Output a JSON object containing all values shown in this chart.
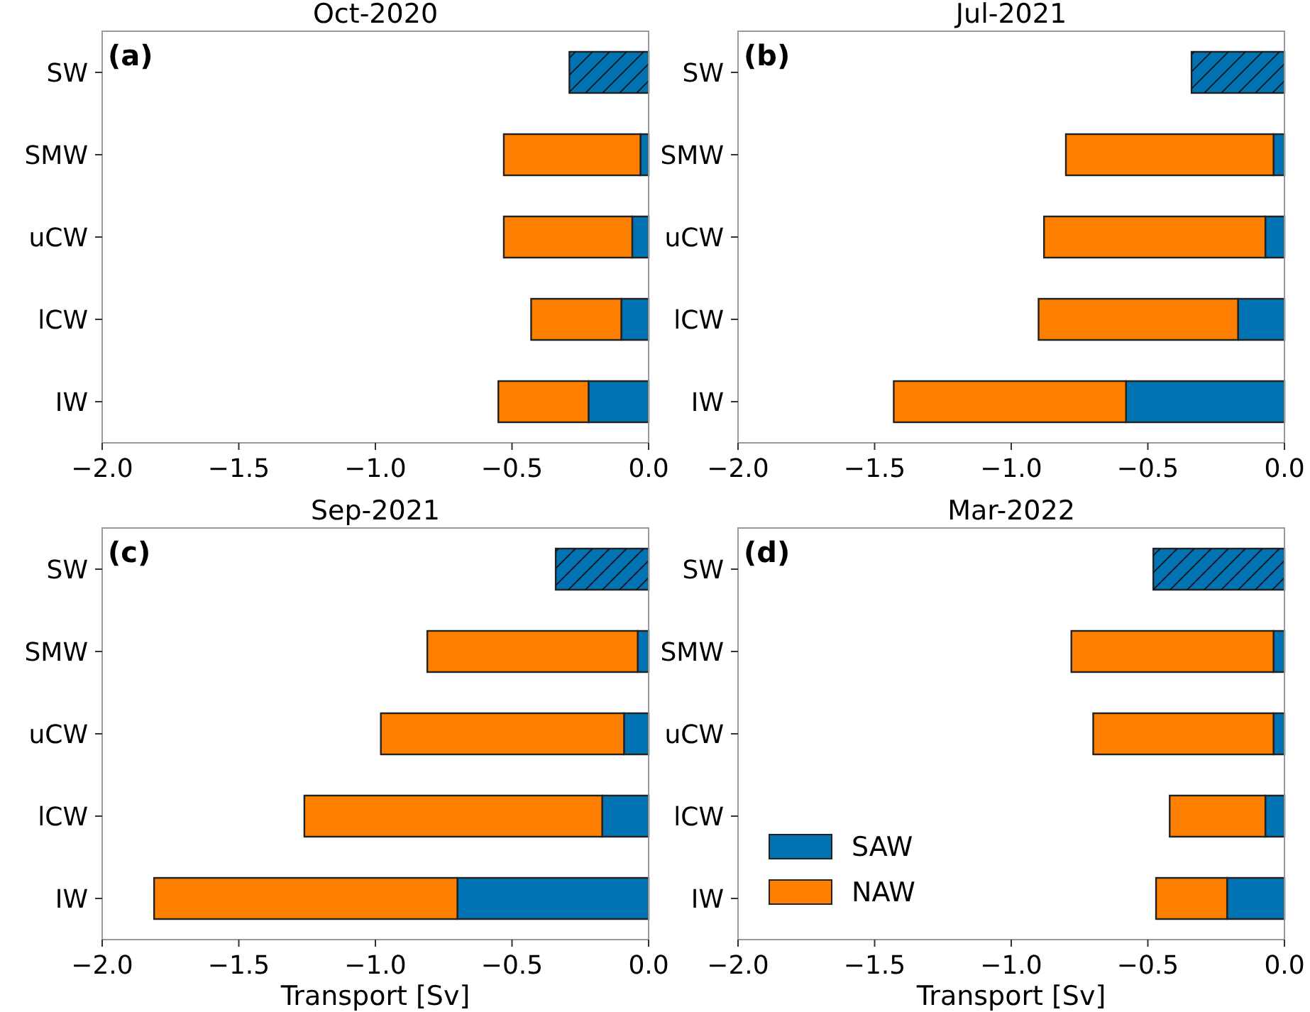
{
  "chart_data": [
    {
      "type": "bar",
      "orientation": "horizontal",
      "stacked": true,
      "title": "Oct-2020",
      "annotations": [
        "(a)"
      ],
      "categories": [
        "SW",
        "SMW",
        "uCW",
        "lCW",
        "IW"
      ],
      "xlim": [
        -2,
        0
      ],
      "xticks": [
        {
          "value": -2,
          "label": "−2.0"
        },
        {
          "value": -1.5,
          "label": "−1.5"
        },
        {
          "value": -1,
          "label": "−1.0"
        },
        {
          "value": -0.5,
          "label": "−0.5"
        },
        {
          "value": 0,
          "label": "0.0"
        }
      ],
      "grid": false,
      "legend": false,
      "series": [
        {
          "color": "#0173b2",
          "values": [
            null,
            -0.03,
            -0.06,
            -0.1,
            -0.22
          ]
        },
        {
          "color": "#ff8000",
          "values": [
            null,
            -0.5,
            -0.47,
            -0.33,
            -0.33
          ]
        },
        {
          "color": "#0173b2",
          "values": [
            -0.29,
            null,
            null,
            null,
            null
          ]
        }
      ]
    },
    {
      "type": "bar",
      "orientation": "horizontal",
      "stacked": true,
      "title": "Jul-2021",
      "annotations": [
        "(b)"
      ],
      "categories": [
        "SW",
        "SMW",
        "uCW",
        "lCW",
        "IW"
      ],
      "xlim": [
        -2,
        0
      ],
      "xticks": [
        {
          "value": -2,
          "label": "−2.0"
        },
        {
          "value": -1.5,
          "label": "−1.5"
        },
        {
          "value": -1,
          "label": "−1.0"
        },
        {
          "value": -0.5,
          "label": "−0.5"
        },
        {
          "value": 0,
          "label": "0.0"
        }
      ],
      "grid": false,
      "legend": false,
      "series": [
        {
          "color": "#0173b2",
          "values": [
            null,
            -0.04,
            -0.07,
            -0.17,
            -0.58
          ]
        },
        {
          "color": "#ff8000",
          "values": [
            null,
            -0.76,
            -0.81,
            -0.73,
            -0.85
          ]
        },
        {
          "color": "#0173b2",
          "values": [
            -0.34,
            null,
            null,
            null,
            null
          ]
        }
      ]
    },
    {
      "type": "bar",
      "orientation": "horizontal",
      "stacked": true,
      "title": "Sep-2021",
      "xlabel": "Transport [Sv]",
      "annotations": [
        "(c)"
      ],
      "categories": [
        "SW",
        "SMW",
        "uCW",
        "lCW",
        "IW"
      ],
      "xlim": [
        -2,
        0
      ],
      "xticks": [
        {
          "value": -2,
          "label": "−2.0"
        },
        {
          "value": -1.5,
          "label": "−1.5"
        },
        {
          "value": -1,
          "label": "−1.0"
        },
        {
          "value": -0.5,
          "label": "−0.5"
        },
        {
          "value": 0,
          "label": "0.0"
        }
      ],
      "grid": false,
      "legend": false,
      "series": [
        {
          "color": "#0173b2",
          "values": [
            null,
            -0.04,
            -0.09,
            -0.17,
            -0.7
          ]
        },
        {
          "color": "#ff8000",
          "values": [
            null,
            -0.77,
            -0.89,
            -1.09,
            -1.11
          ]
        },
        {
          "color": "#0173b2",
          "values": [
            -0.34,
            null,
            null,
            null,
            null
          ]
        }
      ]
    },
    {
      "type": "bar",
      "orientation": "horizontal",
      "stacked": true,
      "title": "Mar-2022",
      "xlabel": "Transport [Sv]",
      "annotations": [
        "(d)"
      ],
      "categories": [
        "SW",
        "SMW",
        "uCW",
        "lCW",
        "IW"
      ],
      "xlim": [
        -2,
        0
      ],
      "xticks": [
        {
          "value": -2,
          "label": "−2.0"
        },
        {
          "value": -1.5,
          "label": "−1.5"
        },
        {
          "value": -1,
          "label": "−1.0"
        },
        {
          "value": -0.5,
          "label": "−0.5"
        },
        {
          "value": 0,
          "label": "0.0"
        }
      ],
      "grid": false,
      "legend": "bottom left",
      "series": [
        {
          "name": "SAW",
          "color": "#0173b2",
          "values": [
            null,
            -0.04,
            -0.04,
            -0.07,
            -0.21
          ]
        },
        {
          "name": "NAW",
          "color": "#ff8000",
          "values": [
            null,
            -0.74,
            -0.66,
            -0.35,
            -0.26
          ]
        },
        {
          "color": "#0173b2",
          "values": [
            -0.48,
            null,
            null,
            null,
            null
          ]
        }
      ]
    }
  ]
}
